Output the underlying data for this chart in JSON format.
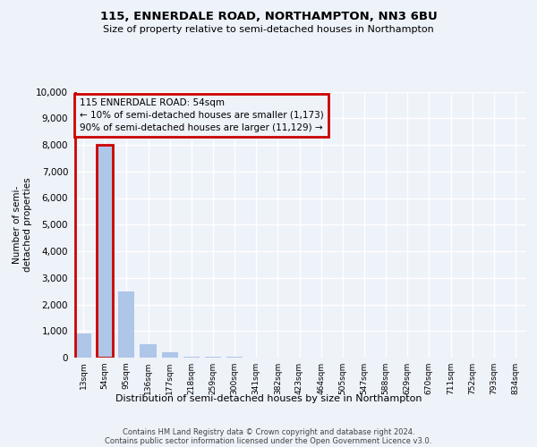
{
  "title1": "115, ENNERDALE ROAD, NORTHAMPTON, NN3 6BU",
  "title2": "Size of property relative to semi-detached houses in Northampton",
  "xlabel": "Distribution of semi-detached houses by size in Northampton",
  "ylabel": "Number of semi-\ndetached properties",
  "categories": [
    "13sqm",
    "54sqm",
    "95sqm",
    "136sqm",
    "177sqm",
    "218sqm",
    "259sqm",
    "300sqm",
    "341sqm",
    "382sqm",
    "423sqm",
    "464sqm",
    "505sqm",
    "547sqm",
    "588sqm",
    "629sqm",
    "670sqm",
    "711sqm",
    "752sqm",
    "793sqm",
    "834sqm"
  ],
  "values": [
    900,
    8000,
    2500,
    500,
    200,
    50,
    30,
    20,
    10,
    5,
    5,
    5,
    5,
    5,
    5,
    5,
    5,
    5,
    5,
    5,
    5
  ],
  "highlight_index": 1,
  "bar_color": "#aec6e8",
  "red_color": "#cc0000",
  "annotation_title": "115 ENNERDALE ROAD: 54sqm",
  "annotation_line2": "← 10% of semi-detached houses are smaller (1,173)",
  "annotation_line3": "90% of semi-detached houses are larger (11,129) →",
  "footnote1": "Contains HM Land Registry data © Crown copyright and database right 2024.",
  "footnote2": "Contains public sector information licensed under the Open Government Licence v3.0.",
  "ylim": [
    0,
    10000
  ],
  "yticks": [
    0,
    1000,
    2000,
    3000,
    4000,
    5000,
    6000,
    7000,
    8000,
    9000,
    10000
  ],
  "background_color": "#eef2f9",
  "grid_color": "#ffffff"
}
